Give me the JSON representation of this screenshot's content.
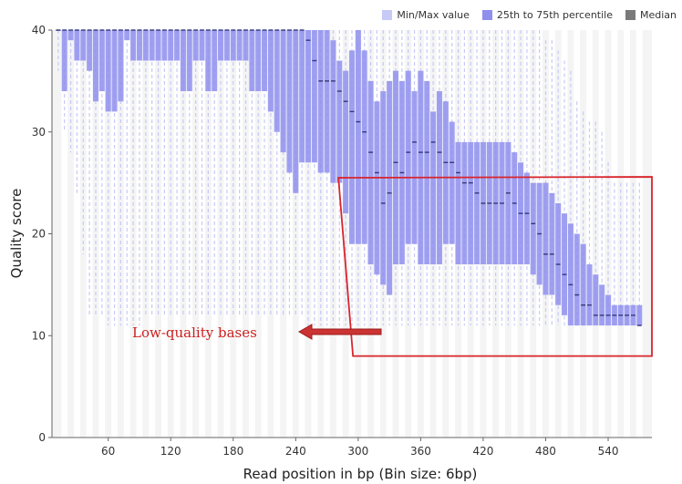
{
  "chart_data": {
    "type": "box",
    "title": "",
    "xlabel": "Read position in bp (Bin size: 6bp)",
    "ylabel": "Quality score",
    "xlim": [
      6,
      582
    ],
    "ylim": [
      0,
      40
    ],
    "x_ticks": [
      60,
      120,
      180,
      240,
      300,
      360,
      420,
      480,
      540
    ],
    "y_ticks": [
      0,
      10,
      20,
      30,
      40
    ],
    "legend": [
      {
        "label": "Min/Max value",
        "color": "#c7c9f7"
      },
      {
        "label": "25th to 75th percentile",
        "color": "#8f8fee"
      },
      {
        "label": "Median",
        "color": "#7a7a7a"
      }
    ],
    "legend_position": "top-right",
    "annotation": {
      "text": "Low-quality bases",
      "color": "#cc1f1f"
    },
    "highlight_region": {
      "x_from": 288,
      "x_to": 582,
      "y_from": 8,
      "y_to": 25.5,
      "color": "#d8252b"
    },
    "bin_size": 6,
    "box": {
      "x": [
        12,
        18,
        24,
        30,
        36,
        42,
        48,
        54,
        60,
        66,
        72,
        78,
        84,
        90,
        96,
        102,
        108,
        114,
        120,
        126,
        132,
        138,
        144,
        150,
        156,
        162,
        168,
        174,
        180,
        186,
        192,
        198,
        204,
        210,
        216,
        222,
        228,
        234,
        240,
        246,
        252,
        258,
        264,
        270,
        276,
        282,
        288,
        294,
        300,
        306,
        312,
        318,
        324,
        330,
        336,
        342,
        348,
        354,
        360,
        366,
        372,
        378,
        384,
        390,
        396,
        402,
        408,
        414,
        420,
        426,
        432,
        438,
        444,
        450,
        456,
        462,
        468,
        474,
        480,
        486,
        492,
        498,
        504,
        510,
        516,
        522,
        528,
        534,
        540,
        546,
        552,
        558,
        564,
        570
      ],
      "q1": [
        40,
        34,
        39,
        37,
        37,
        36,
        33,
        34,
        32,
        32,
        33,
        39,
        37,
        37,
        37,
        37,
        37,
        37,
        37,
        37,
        34,
        34,
        37,
        37,
        34,
        34,
        37,
        37,
        37,
        37,
        37,
        34,
        34,
        34,
        32,
        30,
        28,
        26,
        24,
        27,
        27,
        27,
        26,
        26,
        25,
        25,
        22,
        19,
        19,
        19,
        17,
        16,
        15,
        14,
        17,
        17,
        19,
        19,
        17,
        17,
        17,
        17,
        19,
        19,
        17,
        17,
        17,
        17,
        17,
        17,
        17,
        17,
        17,
        17,
        17,
        17,
        16,
        15,
        14,
        14,
        13,
        12,
        11,
        11,
        11,
        11,
        11,
        11,
        11,
        11,
        11,
        11,
        11,
        11
      ],
      "q3": [
        40,
        40,
        40,
        40,
        40,
        40,
        40,
        40,
        40,
        40,
        40,
        40,
        40,
        40,
        40,
        40,
        40,
        40,
        40,
        40,
        40,
        40,
        40,
        40,
        40,
        40,
        40,
        40,
        40,
        40,
        40,
        40,
        40,
        40,
        40,
        40,
        40,
        40,
        40,
        40,
        40,
        40,
        40,
        40,
        39,
        37,
        36,
        38,
        40,
        38,
        35,
        33,
        34,
        35,
        36,
        35,
        36,
        34,
        36,
        35,
        32,
        34,
        33,
        31,
        29,
        29,
        29,
        29,
        29,
        29,
        29,
        29,
        29,
        28,
        27,
        26,
        25,
        25,
        25,
        24,
        23,
        22,
        21,
        20,
        19,
        17,
        16,
        15,
        14,
        13,
        13,
        13,
        13,
        13
      ],
      "median": [
        40,
        40,
        40,
        40,
        40,
        40,
        40,
        40,
        40,
        40,
        40,
        40,
        40,
        40,
        40,
        40,
        40,
        40,
        40,
        40,
        40,
        40,
        40,
        40,
        40,
        40,
        40,
        40,
        40,
        40,
        40,
        40,
        40,
        40,
        40,
        40,
        40,
        40,
        40,
        40,
        39,
        37,
        35,
        35,
        35,
        34,
        33,
        32,
        31,
        30,
        28,
        26,
        23,
        24,
        27,
        26,
        28,
        29,
        28,
        28,
        29,
        28,
        27,
        27,
        26,
        25,
        25,
        24,
        23,
        23,
        23,
        23,
        24,
        23,
        22,
        22,
        21,
        20,
        18,
        18,
        17,
        16,
        15,
        14,
        13,
        13,
        12,
        12,
        12,
        12,
        12,
        12,
        12,
        11
      ],
      "min": [
        36,
        30,
        28,
        24,
        18,
        12,
        12,
        12,
        11,
        11,
        11,
        11,
        11,
        11,
        12,
        12,
        12,
        12,
        12,
        12,
        12,
        12,
        12,
        12,
        12,
        12,
        12,
        12,
        12,
        12,
        12,
        12,
        12,
        12,
        12,
        12,
        12,
        12,
        12,
        12,
        11,
        11,
        11,
        11,
        11,
        11,
        11,
        11,
        11,
        11,
        11,
        11,
        11,
        11,
        11,
        11,
        11,
        11,
        11,
        11,
        11,
        11,
        11,
        11,
        11,
        11,
        11,
        11,
        11,
        11,
        11,
        11,
        11,
        11,
        11,
        11,
        11,
        11,
        11,
        11,
        11,
        11,
        11,
        11,
        11,
        11,
        11,
        11,
        11,
        11,
        11,
        11,
        11,
        11
      ],
      "max": [
        40,
        40,
        40,
        40,
        40,
        40,
        40,
        40,
        40,
        40,
        40,
        40,
        40,
        40,
        40,
        40,
        40,
        40,
        40,
        40,
        40,
        40,
        40,
        40,
        40,
        40,
        40,
        40,
        40,
        40,
        40,
        40,
        40,
        40,
        40,
        40,
        40,
        40,
        40,
        40,
        40,
        40,
        40,
        40,
        40,
        40,
        40,
        40,
        40,
        40,
        40,
        40,
        40,
        40,
        40,
        40,
        40,
        40,
        40,
        40,
        40,
        40,
        40,
        40,
        40,
        40,
        40,
        40,
        40,
        40,
        40,
        40,
        40,
        40,
        40,
        40,
        40,
        40,
        39,
        39,
        38,
        37,
        36,
        33,
        32,
        31,
        31,
        30,
        27,
        25,
        25,
        25,
        25,
        25
      ]
    }
  }
}
